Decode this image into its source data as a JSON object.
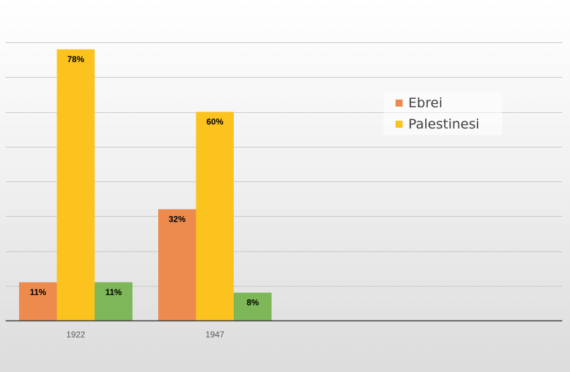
{
  "chart_data": {
    "type": "bar",
    "categories": [
      "1922",
      "1947"
    ],
    "series": [
      {
        "name": "Ebrei",
        "values": [
          11,
          32
        ],
        "labels": [
          "11%",
          "32%"
        ],
        "color": "#ed8b4f"
      },
      {
        "name": "Palestinesi",
        "values": [
          78,
          60
        ],
        "labels": [
          "78%",
          "60%"
        ],
        "color": "#fcc31f"
      },
      {
        "name": "",
        "values": [
          11,
          8
        ],
        "labels": [
          "11%",
          "8%"
        ],
        "color": "#7db757"
      }
    ],
    "ylim": [
      0,
      80
    ],
    "grid": true,
    "legend_position": "right"
  },
  "colors": {
    "gridline": "#c9c9c9",
    "axis": "#404040",
    "tick_label": "#595959",
    "data_label": "#000000"
  }
}
